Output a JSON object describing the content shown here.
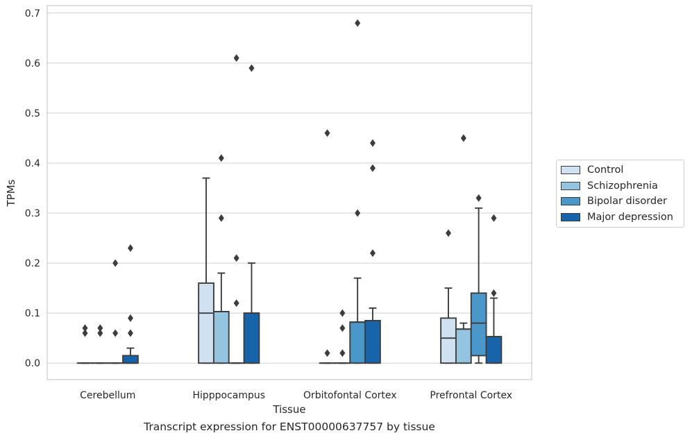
{
  "caption": "Transcript expression for ENST00000637757 by tissue",
  "chart_data": {
    "type": "box",
    "xlabel": "Tissue",
    "ylabel": "TPMs",
    "ylim": [
      -0.033,
      0.715
    ],
    "yticks": [
      "0.0",
      "0.1",
      "0.2",
      "0.3",
      "0.4",
      "0.5",
      "0.6",
      "0.7"
    ],
    "ytick_values": [
      0,
      0.1,
      0.2,
      0.3,
      0.4,
      0.5,
      0.6,
      0.7
    ],
    "grid": "horizontal",
    "legend_position": "right-outside",
    "categories": [
      "Cerebellum",
      "Hipppocampus",
      "Orbitofontal Cortex",
      "Prefrontal Cortex"
    ],
    "series": [
      {
        "name": "Control",
        "color": "#d0e1f2",
        "boxes": [
          {
            "min": 0,
            "q1": 0,
            "median": 0,
            "q3": 0,
            "max": 0,
            "outliers": [
              0.06,
              0.07
            ]
          },
          {
            "min": 0,
            "q1": 0,
            "median": 0.1,
            "q3": 0.16,
            "max": 0.37,
            "outliers": []
          },
          {
            "min": 0,
            "q1": 0,
            "median": 0,
            "q3": 0,
            "max": 0,
            "outliers": [
              0.02,
              0.46
            ]
          },
          {
            "min": 0,
            "q1": 0,
            "median": 0.05,
            "q3": 0.09,
            "max": 0.15,
            "outliers": [
              0.26
            ]
          }
        ]
      },
      {
        "name": "Schizophrenia",
        "color": "#94c4df",
        "boxes": [
          {
            "min": 0,
            "q1": 0,
            "median": 0,
            "q3": 0,
            "max": 0,
            "outliers": [
              0.06,
              0.07
            ]
          },
          {
            "min": 0,
            "q1": 0,
            "median": 0.103,
            "q3": 0.103,
            "max": 0.18,
            "outliers": [
              0.29,
              0.41
            ]
          },
          {
            "min": 0,
            "q1": 0,
            "median": 0,
            "q3": 0,
            "max": 0,
            "outliers": [
              0.02,
              0.07,
              0.1
            ]
          },
          {
            "min": 0,
            "q1": 0,
            "median": 0.068,
            "q3": 0.068,
            "max": 0.08,
            "outliers": [
              0.45
            ]
          }
        ]
      },
      {
        "name": "Bipolar disorder",
        "color": "#4a98c9",
        "boxes": [
          {
            "min": 0,
            "q1": 0,
            "median": 0,
            "q3": 0,
            "max": 0,
            "outliers": [
              0.06,
              0.2
            ]
          },
          {
            "min": 0,
            "q1": 0,
            "median": 0,
            "q3": 0,
            "max": 0,
            "outliers": [
              0.12,
              0.21,
              0.61
            ]
          },
          {
            "min": 0,
            "q1": 0,
            "median": 0.082,
            "q3": 0.082,
            "max": 0.17,
            "outliers": [
              0.3,
              0.68
            ]
          },
          {
            "min": 0,
            "q1": 0.015,
            "median": 0.08,
            "q3": 0.14,
            "max": 0.31,
            "outliers": [
              0.33
            ]
          }
        ]
      },
      {
        "name": "Major depression",
        "color": "#1764ab",
        "boxes": [
          {
            "min": 0,
            "q1": 0,
            "median": 0,
            "q3": 0.015,
            "max": 0.03,
            "outliers": [
              0.06,
              0.09,
              0.23
            ]
          },
          {
            "min": 0,
            "q1": 0,
            "median": 0.1,
            "q3": 0.1,
            "max": 0.2,
            "outliers": [
              0.59
            ]
          },
          {
            "min": 0,
            "q1": 0,
            "median": 0.085,
            "q3": 0.085,
            "max": 0.11,
            "outliers": [
              0.22,
              0.39,
              0.44
            ]
          },
          {
            "min": 0,
            "q1": 0,
            "median": 0.053,
            "q3": 0.053,
            "max": 0.13,
            "outliers": [
              0.14,
              0.29
            ]
          }
        ]
      }
    ]
  }
}
